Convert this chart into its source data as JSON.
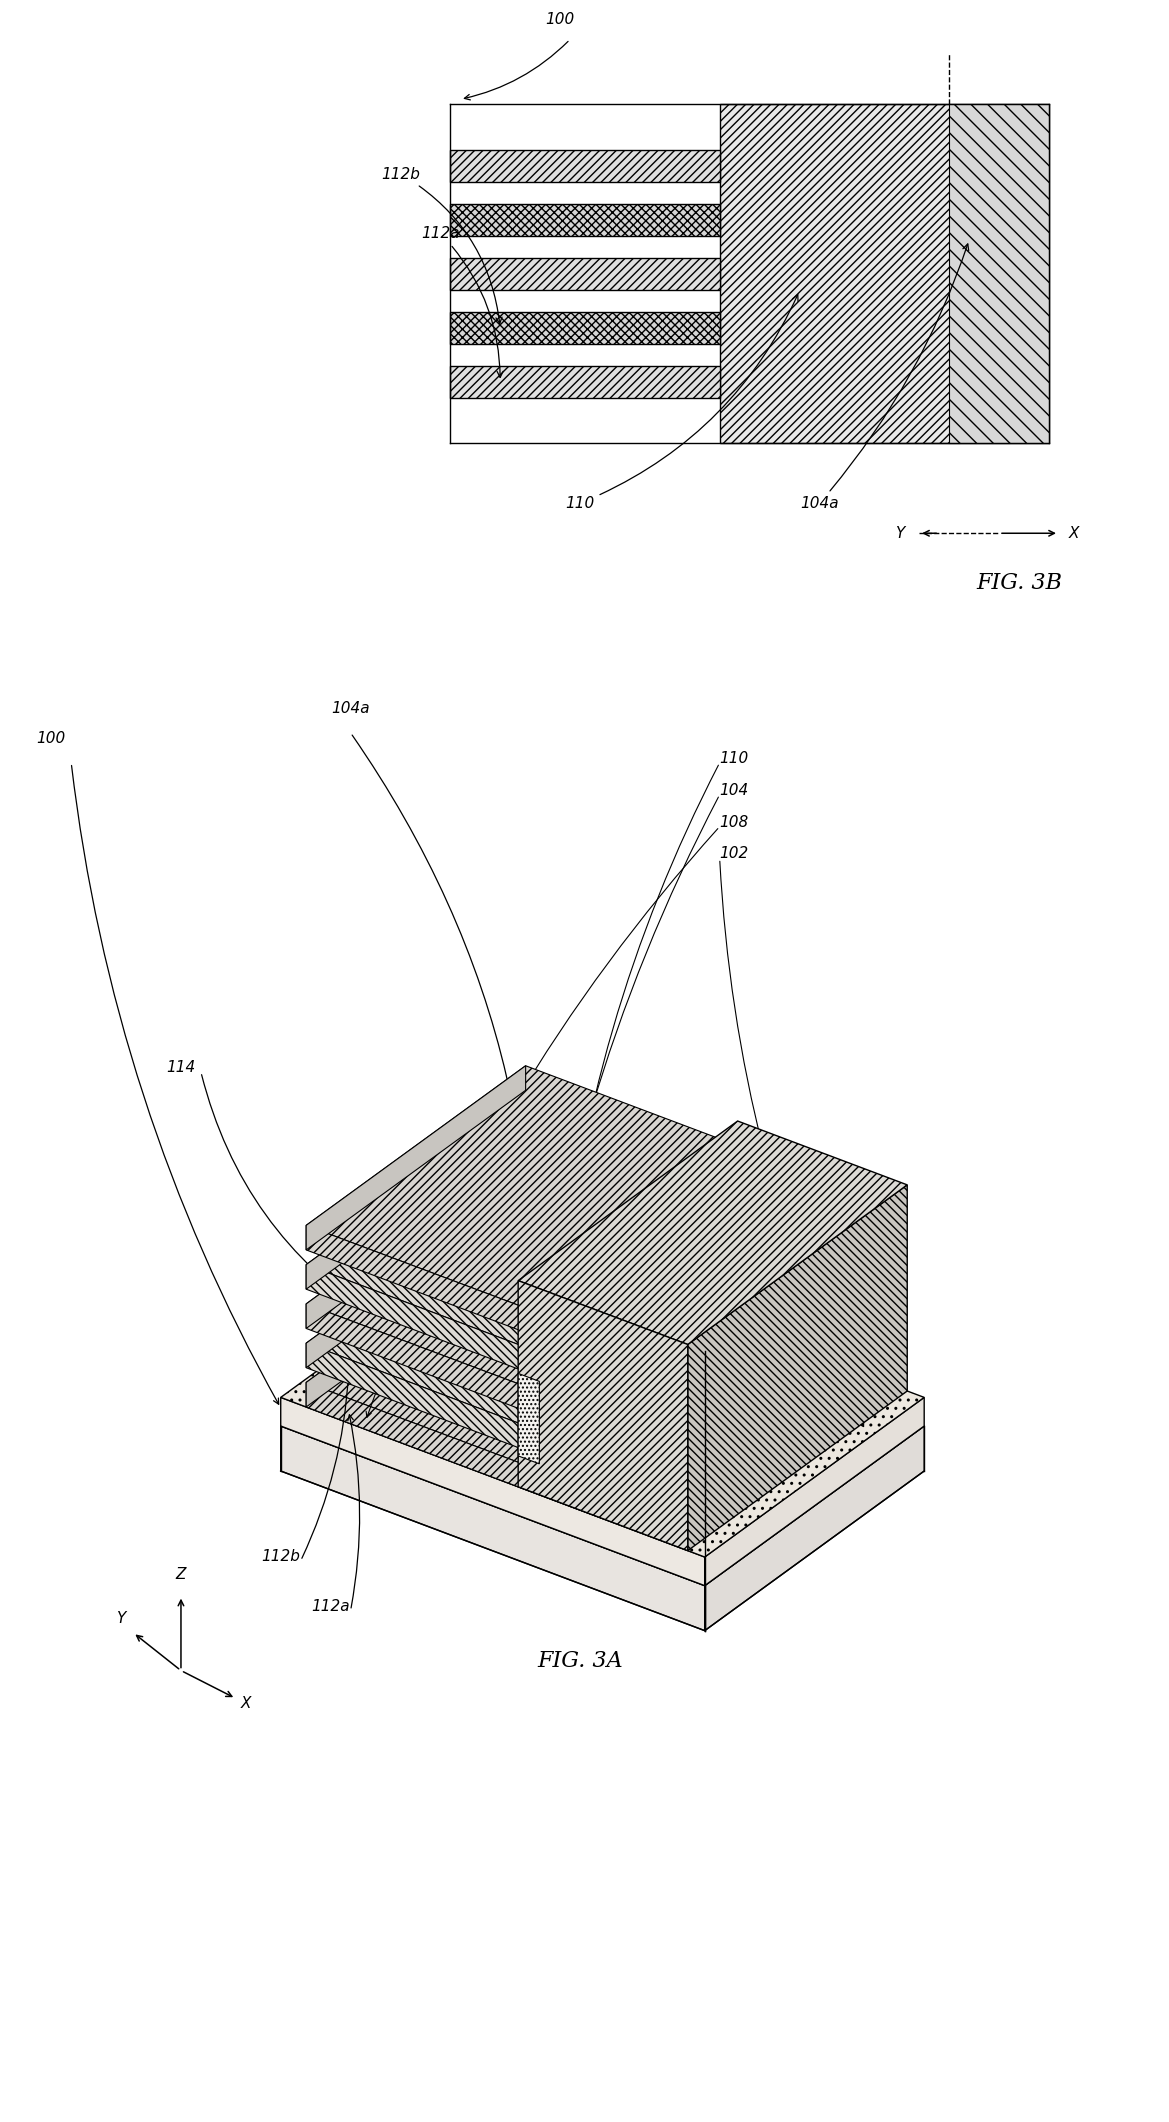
{
  "fig_width": 11.69,
  "fig_height": 21.22,
  "bg_color": "#ffffff",
  "lc": "#000000",
  "lw": 1.0,
  "label_fs": 11,
  "title_fs": 16,
  "fig3a_title": "FIG. 3A",
  "fig3b_title": "FIG. 3B",
  "labels": {
    "100_3b": "100",
    "112b_3b": "112b",
    "112a_3b": "112a",
    "110_3b": "110",
    "104a_3b": "104a",
    "100_3a": "100",
    "104a_3a": "104a",
    "110_3a": "110",
    "104_3a": "104",
    "108_3a": "108",
    "102_3a": "102",
    "114_3a": "114",
    "112b_3a": "112b",
    "112a_3a": "112a"
  }
}
